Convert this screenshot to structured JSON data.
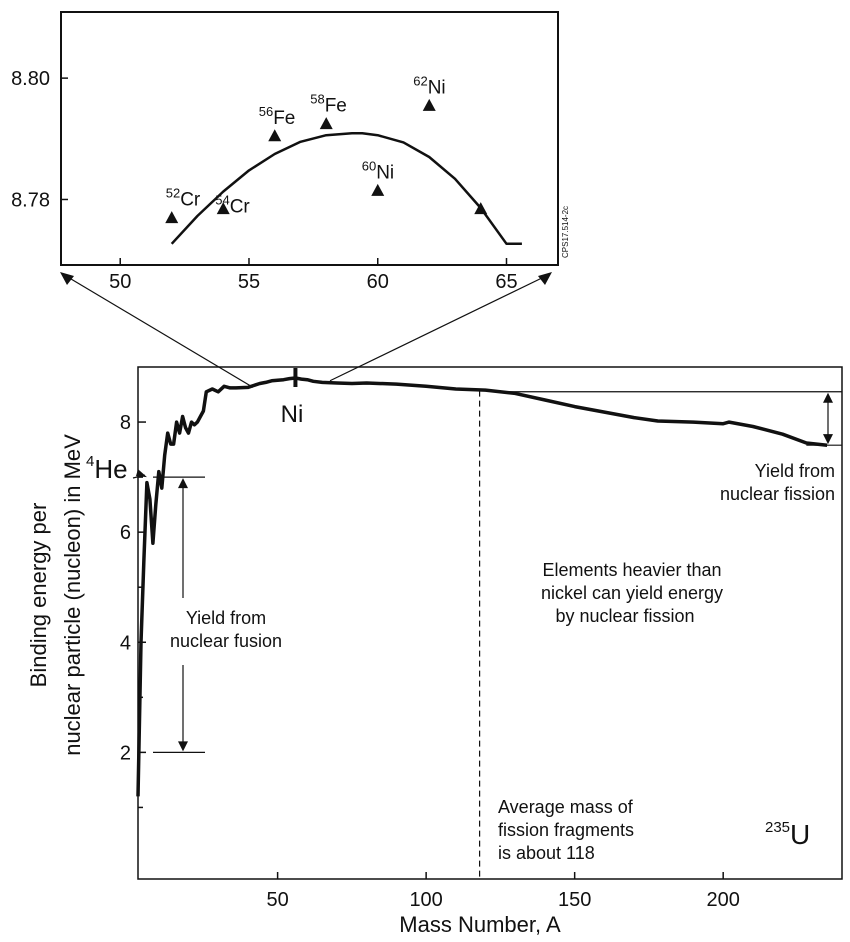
{
  "chart_data": [
    {
      "type": "scatter",
      "xlim": [
        47.7,
        67
      ],
      "ylim": [
        8.7692,
        8.8109
      ],
      "xticks": [
        50,
        55,
        60,
        65
      ],
      "yticks": [
        8.78,
        8.8
      ],
      "xtick_labels": [
        "50",
        "55",
        "60",
        "65"
      ],
      "ytick_labels": [
        "8.78",
        "8.80"
      ],
      "points": [
        {
          "x": 52.0,
          "y": 8.777,
          "mass": "52",
          "symbol": "Cr"
        },
        {
          "x": 54.0,
          "y": 8.7785,
          "mass": "54",
          "symbol": "Cr"
        },
        {
          "x": 56.0,
          "y": 8.7905,
          "mass": "56",
          "symbol": "Fe"
        },
        {
          "x": 58.0,
          "y": 8.7925,
          "mass": "58",
          "symbol": "Fe"
        },
        {
          "x": 60.0,
          "y": 8.7815,
          "mass": "60",
          "symbol": "Ni"
        },
        {
          "x": 62.0,
          "y": 8.7955,
          "mass": "62",
          "symbol": "Ni"
        },
        {
          "x": 64.0,
          "y": 8.7785,
          "mass": "",
          "symbol": ""
        }
      ],
      "fit_curve": {
        "x": [
          52,
          53,
          54,
          55,
          56,
          57,
          58,
          59,
          59.4,
          60,
          61,
          62,
          63,
          64,
          65,
          65.6
        ],
        "y": [
          8.7727,
          8.7773,
          8.7813,
          8.7848,
          8.7875,
          8.7895,
          8.7906,
          8.7909,
          8.7909,
          8.7906,
          8.7894,
          8.787,
          8.7834,
          8.7786,
          8.7727,
          8.7727
        ]
      },
      "side_label": "CPS17.514-2c"
    },
    {
      "type": "line",
      "xlabel": "Mass Number, A",
      "ylabel": [
        "Binding energy per",
        "nuclear particle (nucleon) in MeV"
      ],
      "xlim": [
        3,
        240
      ],
      "ylim": [
        -0.3,
        9.0
      ],
      "xticks": [
        50,
        100,
        150,
        200
      ],
      "yticks": [
        2,
        4,
        6,
        8
      ],
      "xtick_labels": [
        "50",
        "100",
        "150",
        "200"
      ],
      "ytick_labels": [
        "2",
        "4",
        "6",
        "8"
      ],
      "curve": {
        "x": [
          3,
          4,
          5,
          6,
          7,
          8,
          9,
          10,
          11,
          12,
          13,
          14,
          15,
          16,
          17,
          18,
          19,
          20,
          21,
          22,
          23,
          24,
          25,
          26,
          28,
          30,
          32,
          34,
          36,
          40,
          44,
          46,
          48,
          50,
          52,
          54,
          56,
          58,
          60,
          62,
          65,
          70,
          75,
          80,
          90,
          100,
          110,
          120,
          130,
          140,
          150,
          160,
          170,
          178,
          190,
          200,
          202,
          210,
          220,
          228,
          235
        ],
        "y": [
          1.2,
          4.0,
          5.5,
          6.9,
          6.6,
          5.8,
          6.5,
          7.1,
          6.8,
          7.4,
          7.8,
          7.6,
          7.6,
          8.0,
          7.8,
          8.1,
          7.9,
          7.8,
          8.0,
          7.95,
          8.0,
          8.1,
          8.2,
          8.55,
          8.6,
          8.55,
          8.65,
          8.62,
          8.62,
          8.63,
          8.7,
          8.72,
          8.75,
          8.76,
          8.77,
          8.79,
          8.8,
          8.78,
          8.77,
          8.74,
          8.72,
          8.71,
          8.7,
          8.71,
          8.69,
          8.65,
          8.6,
          8.58,
          8.52,
          8.4,
          8.28,
          8.18,
          8.08,
          8.02,
          8.0,
          7.97,
          8.0,
          7.92,
          7.78,
          7.62,
          7.58
        ]
      },
      "he4_label": {
        "mass": "4",
        "symbol": "He"
      },
      "ni_label": "Ni",
      "u235_label": {
        "mass": "235",
        "symbol": "U"
      },
      "fusion_label": [
        "Yield from",
        "nuclear fusion"
      ],
      "fission_yield_label": [
        "Yield from",
        "nuclear fission"
      ],
      "heavier_label": [
        "Elements heavier than",
        "nickel can yield energy",
        "by nuclear fission"
      ],
      "avg_mass_label": [
        "Average mass of",
        "fission fragments",
        "is about 118"
      ],
      "avg_mass_x": 118,
      "fusion_arrow_y": [
        7.0,
        2.0
      ],
      "fission_arrow_y": [
        8.55,
        7.58
      ]
    }
  ]
}
